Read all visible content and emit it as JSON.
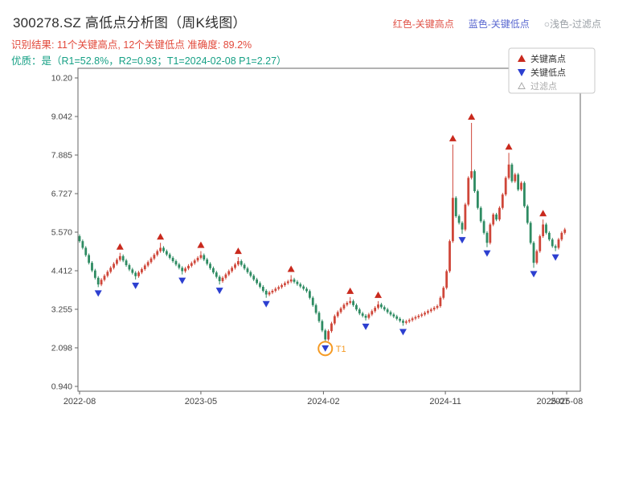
{
  "header": {
    "title": "300278.SZ 高低点分析图（周K线图）",
    "legend_inline": [
      {
        "label": "红色-关键高点",
        "color": "#e05348"
      },
      {
        "label": "蓝色-关键低点",
        "color": "#5a68d0"
      },
      {
        "label": "○浅色-过滤点",
        "color": "#9aa0a6"
      }
    ],
    "result_line": "识别结果: 11个关键高点, 12个关键低点  准确度: 89.2%",
    "quality_line": "优质：是（R1=52.8%，R2=0.93；T1=2024-02-08 P1=2.27）"
  },
  "legend_box": {
    "items": [
      {
        "label": "关键高点",
        "marker": "triangle-up",
        "color": "#c9291d",
        "text_color": "#333333"
      },
      {
        "label": "关键低点",
        "marker": "triangle-down",
        "color": "#2c3fd0",
        "text_color": "#333333"
      },
      {
        "label": "过滤点",
        "marker": "triangle-up-hollow",
        "color": "#aaaaaa",
        "text_color": "#aaaaaa"
      }
    ]
  },
  "axes": {
    "y_ticks": [
      {
        "label": "10.20",
        "value": 10.2
      },
      {
        "label": "9.042",
        "value": 9.042
      },
      {
        "label": "7.885",
        "value": 7.885
      },
      {
        "label": "6.727",
        "value": 6.727
      },
      {
        "label": "5.570",
        "value": 5.57
      },
      {
        "label": "4.412",
        "value": 4.412
      },
      {
        "label": "3.255",
        "value": 3.255
      },
      {
        "label": "2.098",
        "value": 2.098
      },
      {
        "label": "0.940",
        "value": 0.94
      }
    ],
    "x_ticks": [
      {
        "label": "2022-08",
        "week": 0
      },
      {
        "label": "2023-05",
        "week": 39.0
      },
      {
        "label": "2024-02",
        "week": 78.4
      },
      {
        "label": "2024-11",
        "week": 117.6
      },
      {
        "label": "2025-07",
        "week": 152.1
      },
      {
        "label": "2025-08",
        "week": 156.6
      }
    ]
  },
  "chart_data": {
    "type": "candlestick",
    "symbol": "300278.SZ",
    "interval": "weekly",
    "x_start": "2022-08",
    "price_range": [
      0.8,
      10.5
    ],
    "open_first": 5.45,
    "closes": [
      5.3,
      5.1,
      4.88,
      4.65,
      4.42,
      4.2,
      4.0,
      4.14,
      4.26,
      4.38,
      4.5,
      4.62,
      4.74,
      4.85,
      4.72,
      4.58,
      4.45,
      4.35,
      4.25,
      4.36,
      4.46,
      4.57,
      4.67,
      4.78,
      4.89,
      5.0,
      5.1,
      5.0,
      4.9,
      4.8,
      4.7,
      4.6,
      4.5,
      4.4,
      4.48,
      4.56,
      4.64,
      4.72,
      4.8,
      4.88,
      4.75,
      4.62,
      4.49,
      4.36,
      4.23,
      4.1,
      4.2,
      4.3,
      4.4,
      4.5,
      4.6,
      4.7,
      4.59,
      4.48,
      4.37,
      4.26,
      4.15,
      4.04,
      3.93,
      3.81,
      3.7,
      3.76,
      3.81,
      3.87,
      3.92,
      3.98,
      4.04,
      4.09,
      4.15,
      4.08,
      4.01,
      3.94,
      3.87,
      3.8,
      3.6,
      3.38,
      3.15,
      2.9,
      2.62,
      2.35,
      2.6,
      2.83,
      3.05,
      3.17,
      3.28,
      3.39,
      3.45,
      3.5,
      3.38,
      3.25,
      3.13,
      3.06,
      3.0,
      3.1,
      3.2,
      3.3,
      3.4,
      3.32,
      3.25,
      3.17,
      3.1,
      3.04,
      2.97,
      2.91,
      2.85,
      2.89,
      2.93,
      2.98,
      3.02,
      3.06,
      3.1,
      3.15,
      3.2,
      3.25,
      3.3,
      3.35,
      3.6,
      3.9,
      4.4,
      5.3,
      6.6,
      6.05,
      5.85,
      5.65,
      6.4,
      7.2,
      7.4,
      6.8,
      6.3,
      5.9,
      5.55,
      5.25,
      5.8,
      6.1,
      5.95,
      6.3,
      6.7,
      7.2,
      7.6,
      7.1,
      7.3,
      6.85,
      7.05,
      6.35,
      5.85,
      5.25,
      4.65,
      5.0,
      5.45,
      5.8,
      5.55,
      5.35,
      5.15,
      5.1,
      5.35,
      5.55,
      5.65
    ],
    "key_highs": [
      {
        "week": 13,
        "price": 4.95
      },
      {
        "week": 26,
        "price": 5.25
      },
      {
        "week": 39,
        "price": 5.0
      },
      {
        "week": 51,
        "price": 4.82
      },
      {
        "week": 68,
        "price": 4.28
      },
      {
        "week": 87,
        "price": 3.62
      },
      {
        "week": 96,
        "price": 3.5
      },
      {
        "week": 120,
        "price": 8.2
      },
      {
        "week": 126,
        "price": 8.85
      },
      {
        "week": 138,
        "price": 7.95
      },
      {
        "week": 149,
        "price": 5.95
      }
    ],
    "key_lows": [
      {
        "week": 6,
        "price": 3.92
      },
      {
        "week": 18,
        "price": 4.15
      },
      {
        "week": 33,
        "price": 4.3
      },
      {
        "week": 45,
        "price": 4.0
      },
      {
        "week": 60,
        "price": 3.6
      },
      {
        "week": 79,
        "price": 2.27
      },
      {
        "week": 92,
        "price": 2.92
      },
      {
        "week": 104,
        "price": 2.76
      },
      {
        "week": 123,
        "price": 5.52
      },
      {
        "week": 131,
        "price": 5.12
      },
      {
        "week": 146,
        "price": 4.5
      },
      {
        "week": 153,
        "price": 5.0
      }
    ],
    "filtered_points": [],
    "t1": {
      "week": 79,
      "price": 2.27,
      "label": "T1",
      "date": "2024-02-08"
    },
    "colors": {
      "up": "#cf4639",
      "down": "#2e8b62",
      "high_marker": "#c9291d",
      "low_marker": "#2c3fd0",
      "t1": "#f59a23",
      "axis": "#666666",
      "tick_text": "#444444"
    }
  }
}
